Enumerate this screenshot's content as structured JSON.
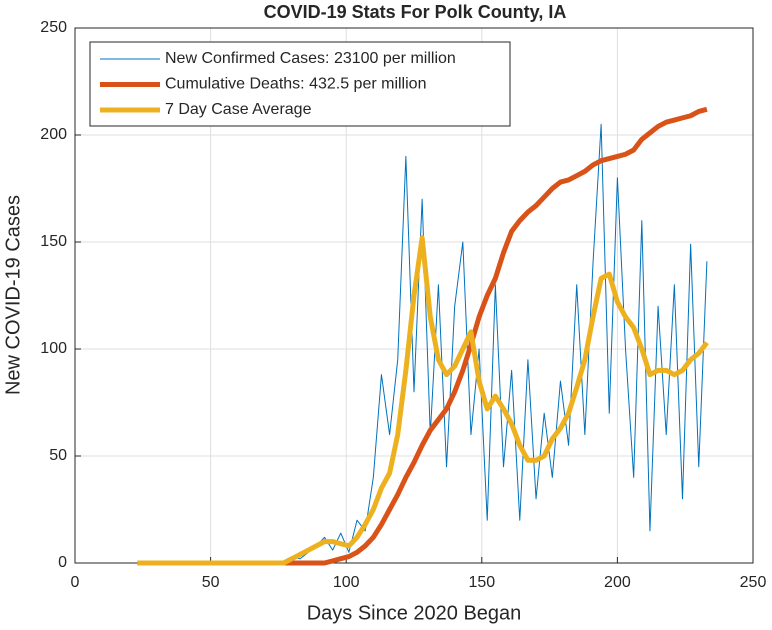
{
  "chart_data": {
    "type": "line",
    "title": "COVID-19 Stats For Polk County, IA",
    "x_label": "Days Since 2020 Began",
    "y_label": "New COVID-19 Cases",
    "x": [
      23,
      26,
      29,
      32,
      35,
      38,
      41,
      44,
      47,
      50,
      53,
      56,
      59,
      62,
      65,
      68,
      71,
      74,
      77,
      80,
      83,
      86,
      89,
      92,
      95,
      98,
      101,
      104,
      107,
      110,
      113,
      116,
      119,
      122,
      125,
      128,
      131,
      134,
      137,
      140,
      143,
      146,
      149,
      152,
      155,
      158,
      161,
      164,
      167,
      170,
      173,
      176,
      179,
      182,
      185,
      188,
      191,
      194,
      197,
      200,
      203,
      206,
      209,
      212,
      215,
      218,
      221,
      224,
      227,
      230,
      233
    ],
    "series": [
      {
        "name": "New Confirmed Cases: 23100 per million",
        "color": "#0072BD",
        "width": 1,
        "values": [
          0,
          0,
          0,
          0,
          0,
          0,
          0,
          0,
          0,
          0,
          0,
          0,
          0,
          0,
          0,
          0,
          0,
          0,
          1,
          3,
          2,
          5,
          8,
          12,
          6,
          14,
          5,
          20,
          15,
          40,
          88,
          60,
          95,
          190,
          80,
          170,
          60,
          130,
          45,
          120,
          150,
          60,
          100,
          20,
          130,
          45,
          90,
          20,
          95,
          30,
          70,
          40,
          85,
          55,
          130,
          60,
          140,
          205,
          70,
          180,
          100,
          40,
          160,
          15,
          120,
          60,
          130,
          30,
          149,
          45,
          141
        ]
      },
      {
        "name": "Cumulative Deaths: 432.5 per million",
        "color": "#D95319",
        "width": 5,
        "values": [
          0,
          0,
          0,
          0,
          0,
          0,
          0,
          0,
          0,
          0,
          0,
          0,
          0,
          0,
          0,
          0,
          0,
          0,
          0,
          0,
          0,
          0,
          0,
          0,
          1,
          2,
          3,
          5,
          8,
          12,
          18,
          25,
          32,
          40,
          47,
          55,
          62,
          67,
          72,
          80,
          90,
          102,
          115,
          125,
          133,
          145,
          155,
          160,
          164,
          167,
          171,
          175,
          178,
          179,
          181,
          183,
          186,
          188,
          189,
          190,
          191,
          193,
          198,
          201,
          204,
          206,
          207,
          208,
          209,
          211,
          212
        ]
      },
      {
        "name": "7 Day Case Average",
        "color": "#EDB120",
        "width": 5,
        "values": [
          0,
          0,
          0,
          0,
          0,
          0,
          0,
          0,
          0,
          0,
          0,
          0,
          0,
          0,
          0,
          0,
          0,
          0,
          0,
          2,
          4,
          6,
          8,
          10,
          10,
          9,
          8,
          12,
          18,
          25,
          35,
          42,
          60,
          90,
          125,
          152,
          115,
          95,
          88,
          92,
          100,
          108,
          85,
          72,
          78,
          72,
          65,
          55,
          48,
          48,
          50,
          58,
          63,
          70,
          82,
          95,
          115,
          133,
          135,
          122,
          115,
          110,
          100,
          88,
          90,
          90,
          88,
          90,
          95,
          98,
          103
        ]
      }
    ],
    "xlim": [
      0,
      250
    ],
    "xticks": [
      0,
      50,
      100,
      150,
      200,
      250
    ],
    "ylim": [
      0,
      250
    ],
    "yticks": [
      0,
      50,
      100,
      150,
      200,
      250
    ],
    "grid": true,
    "legend": "top-left"
  }
}
